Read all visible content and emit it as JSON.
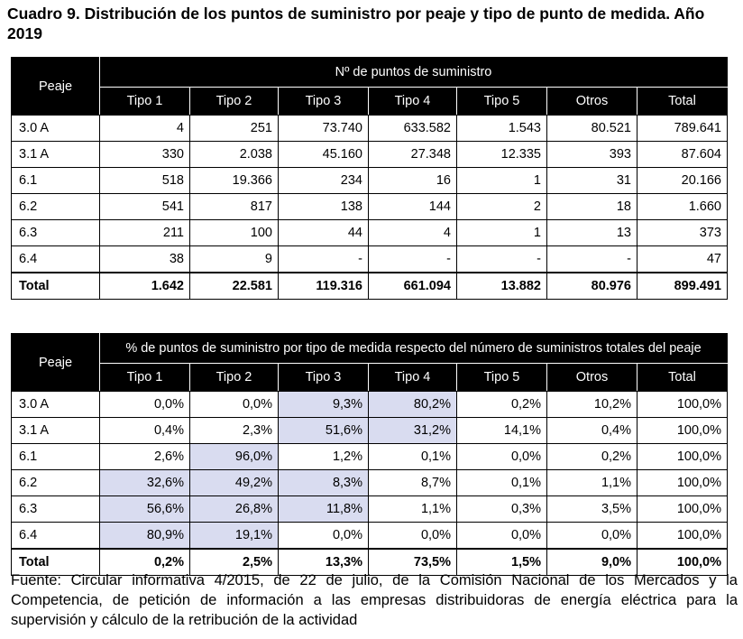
{
  "title": "Cuadro 9. Distribución de los puntos de suministro por peaje y tipo de punto de medida. Año 2019",
  "table1": {
    "row_header": "Peaje",
    "group_header": "Nº de puntos de suministro",
    "columns": [
      "Tipo 1",
      "Tipo 2",
      "Tipo 3",
      "Tipo 4",
      "Tipo 5",
      "Otros",
      "Total"
    ],
    "rows": [
      {
        "label": "3.0 A",
        "values": [
          "4",
          "251",
          "73.740",
          "633.582",
          "1.543",
          "80.521",
          "789.641"
        ]
      },
      {
        "label": "3.1 A",
        "values": [
          "330",
          "2.038",
          "45.160",
          "27.348",
          "12.335",
          "393",
          "87.604"
        ]
      },
      {
        "label": "6.1",
        "values": [
          "518",
          "19.366",
          "234",
          "16",
          "1",
          "31",
          "20.166"
        ]
      },
      {
        "label": "6.2",
        "values": [
          "541",
          "817",
          "138",
          "144",
          "2",
          "18",
          "1.660"
        ]
      },
      {
        "label": "6.3",
        "values": [
          "211",
          "100",
          "44",
          "4",
          "1",
          "13",
          "373"
        ]
      },
      {
        "label": "6.4",
        "values": [
          "38",
          "9",
          "-",
          "-",
          "-",
          "-",
          "47"
        ]
      }
    ],
    "total": {
      "label": "Total",
      "values": [
        "1.642",
        "22.581",
        "119.316",
        "661.094",
        "13.882",
        "80.976",
        "899.491"
      ]
    }
  },
  "table2": {
    "row_header": "Peaje",
    "group_header": "% de puntos de suministro por tipo de medida respecto del número de suministros totales del peaje",
    "columns": [
      "Tipo 1",
      "Tipo 2",
      "Tipo 3",
      "Tipo 4",
      "Tipo 5",
      "Otros",
      "Total"
    ],
    "highlight_color": "#d9dcf0",
    "rows": [
      {
        "label": "3.0 A",
        "values": [
          "0,0%",
          "0,0%",
          "9,3%",
          "80,2%",
          "0,2%",
          "10,2%",
          "100,0%"
        ]
      },
      {
        "label": "3.1 A",
        "values": [
          "0,4%",
          "2,3%",
          "51,6%",
          "31,2%",
          "14,1%",
          "0,4%",
          "100,0%"
        ]
      },
      {
        "label": "6.1",
        "values": [
          "2,6%",
          "96,0%",
          "1,2%",
          "0,1%",
          "0,0%",
          "0,2%",
          "100,0%"
        ]
      },
      {
        "label": "6.2",
        "values": [
          "32,6%",
          "49,2%",
          "8,3%",
          "8,7%",
          "0,1%",
          "1,1%",
          "100,0%"
        ]
      },
      {
        "label": "6.3",
        "values": [
          "56,6%",
          "26,8%",
          "11,8%",
          "1,1%",
          "0,3%",
          "3,5%",
          "100,0%"
        ]
      },
      {
        "label": "6.4",
        "values": [
          "80,9%",
          "19,1%",
          "0,0%",
          "0,0%",
          "0,0%",
          "0,0%",
          "100,0%"
        ]
      }
    ],
    "total": {
      "label": "Total",
      "values": [
        "0,2%",
        "2,5%",
        "13,3%",
        "73,5%",
        "1,5%",
        "9,0%",
        "100,0%"
      ]
    }
  },
  "source": "Fuente: Circular informativa 4/2015, de 22 de julio, de la Comisión Nacional de los Mercados y la Competencia, de petición de información a las empresas distribuidoras de energía eléctrica para la supervisión y cálculo de la retribución de la actividad"
}
